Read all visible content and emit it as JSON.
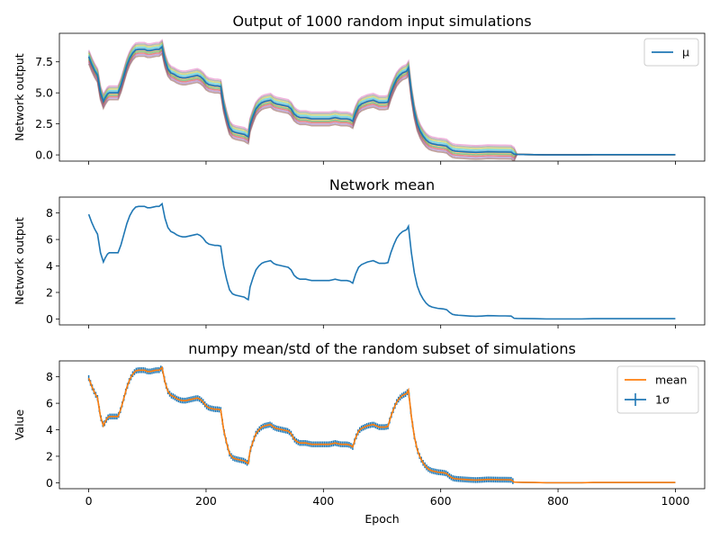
{
  "chart_data": [
    {
      "type": "line",
      "title": "Output of 1000 random input simulations",
      "xlabel": "",
      "ylabel": "Network output",
      "xlim": [
        -50,
        1050
      ],
      "ylim": [
        -0.5,
        9.8
      ],
      "xticks": [
        0,
        200,
        400,
        600,
        800,
        1000
      ],
      "yticks": [
        0.0,
        2.5,
        5.0,
        7.5
      ],
      "ytick_labels": [
        "0.0",
        "2.5",
        "5.0",
        "7.5"
      ],
      "show_xtick_labels": false,
      "legend": {
        "placement": "top-right",
        "entries": [
          {
            "label": "μ",
            "color": "#1f77b4",
            "kind": "line"
          }
        ]
      },
      "band_colors": [
        "#e377c2",
        "#7f7f7f",
        "#bcbd22",
        "#17becf",
        "#1f77b4",
        "#ff7f0e",
        "#2ca02c",
        "#d62728",
        "#9467bd",
        "#8c564b"
      ],
      "band_half_width": 0.55,
      "band_end_epoch": 725,
      "series": [
        {
          "color": "#1f77b4",
          "x": [
            0,
            5,
            10,
            15,
            20,
            25,
            28,
            32,
            35,
            40,
            45,
            50,
            55,
            60,
            65,
            70,
            75,
            80,
            85,
            90,
            95,
            100,
            105,
            110,
            115,
            120,
            125,
            130,
            135,
            140,
            145,
            150,
            155,
            160,
            165,
            170,
            175,
            180,
            185,
            190,
            195,
            200,
            205,
            210,
            215,
            220,
            225,
            230,
            235,
            240,
            245,
            250,
            255,
            260,
            265,
            270,
            272,
            275,
            280,
            285,
            290,
            295,
            300,
            305,
            310,
            315,
            320,
            325,
            330,
            335,
            340,
            345,
            350,
            355,
            360,
            365,
            370,
            375,
            380,
            385,
            390,
            395,
            400,
            405,
            410,
            415,
            420,
            425,
            430,
            435,
            440,
            445,
            450,
            455,
            460,
            465,
            470,
            475,
            480,
            485,
            490,
            495,
            500,
            505,
            510,
            515,
            520,
            525,
            530,
            535,
            540,
            542,
            545,
            550,
            555,
            560,
            565,
            570,
            575,
            580,
            585,
            590,
            595,
            600,
            605,
            610,
            615,
            620,
            625,
            630,
            640,
            650,
            660,
            670,
            680,
            690,
            700,
            710,
            720,
            725,
            730,
            740,
            760,
            780,
            800,
            820,
            840,
            860,
            880,
            900,
            920,
            940,
            960,
            980,
            1000
          ],
          "y": [
            7.9,
            7.3,
            6.8,
            6.4,
            5.0,
            4.3,
            4.6,
            4.9,
            5.0,
            5.0,
            5.0,
            5.0,
            5.6,
            6.4,
            7.2,
            7.8,
            8.2,
            8.45,
            8.5,
            8.5,
            8.5,
            8.4,
            8.4,
            8.45,
            8.5,
            8.5,
            8.7,
            7.6,
            6.9,
            6.6,
            6.5,
            6.35,
            6.25,
            6.2,
            6.2,
            6.25,
            6.3,
            6.35,
            6.4,
            6.3,
            6.1,
            5.8,
            5.65,
            5.6,
            5.55,
            5.55,
            5.5,
            4.0,
            3.0,
            2.2,
            1.9,
            1.8,
            1.75,
            1.7,
            1.65,
            1.5,
            1.45,
            2.4,
            3.1,
            3.7,
            4.0,
            4.2,
            4.3,
            4.35,
            4.4,
            4.2,
            4.1,
            4.05,
            4.0,
            3.95,
            3.9,
            3.7,
            3.3,
            3.1,
            3.0,
            3.0,
            3.0,
            2.95,
            2.9,
            2.9,
            2.9,
            2.9,
            2.9,
            2.9,
            2.9,
            2.95,
            3.0,
            2.95,
            2.9,
            2.9,
            2.9,
            2.85,
            2.7,
            3.4,
            3.9,
            4.1,
            4.2,
            4.3,
            4.35,
            4.4,
            4.3,
            4.2,
            4.2,
            4.2,
            4.25,
            5.0,
            5.6,
            6.1,
            6.4,
            6.6,
            6.7,
            6.75,
            7.0,
            5.0,
            3.5,
            2.5,
            1.9,
            1.5,
            1.2,
            1.0,
            0.9,
            0.85,
            0.8,
            0.78,
            0.75,
            0.7,
            0.5,
            0.35,
            0.3,
            0.28,
            0.25,
            0.22,
            0.2,
            0.22,
            0.25,
            0.24,
            0.23,
            0.23,
            0.22,
            0.05,
            0.04,
            0.03,
            0.02,
            0.0,
            0.0,
            0.0,
            0.0,
            0.02,
            0.02,
            0.02,
            0.02,
            0.02,
            0.02,
            0.02,
            0.02
          ]
        }
      ]
    },
    {
      "type": "line",
      "title": "Network mean",
      "xlabel": "",
      "ylabel": "Network output",
      "xlim": [
        -50,
        1050
      ],
      "ylim": [
        -0.45,
        9.2
      ],
      "xticks": [
        0,
        200,
        400,
        600,
        800,
        1000
      ],
      "yticks": [
        0,
        2,
        4,
        6,
        8
      ],
      "ytick_labels": [
        "0",
        "2",
        "4",
        "6",
        "8"
      ],
      "show_xtick_labels": false,
      "series": [
        {
          "color": "#1f77b4",
          "x": [
            0,
            5,
            10,
            15,
            20,
            25,
            28,
            32,
            35,
            40,
            45,
            50,
            55,
            60,
            65,
            70,
            75,
            80,
            85,
            90,
            95,
            100,
            105,
            110,
            115,
            120,
            125,
            130,
            135,
            140,
            145,
            150,
            155,
            160,
            165,
            170,
            175,
            180,
            185,
            190,
            195,
            200,
            205,
            210,
            215,
            220,
            225,
            230,
            235,
            240,
            245,
            250,
            255,
            260,
            265,
            270,
            272,
            275,
            280,
            285,
            290,
            295,
            300,
            305,
            310,
            315,
            320,
            325,
            330,
            335,
            340,
            345,
            350,
            355,
            360,
            365,
            370,
            375,
            380,
            385,
            390,
            395,
            400,
            405,
            410,
            415,
            420,
            425,
            430,
            435,
            440,
            445,
            450,
            455,
            460,
            465,
            470,
            475,
            480,
            485,
            490,
            495,
            500,
            505,
            510,
            515,
            520,
            525,
            530,
            535,
            540,
            542,
            545,
            550,
            555,
            560,
            565,
            570,
            575,
            580,
            585,
            590,
            595,
            600,
            605,
            610,
            615,
            620,
            625,
            630,
            640,
            650,
            660,
            670,
            680,
            690,
            700,
            710,
            720,
            725,
            730,
            740,
            760,
            780,
            800,
            820,
            840,
            860,
            880,
            900,
            920,
            940,
            960,
            980,
            1000
          ],
          "y": [
            7.9,
            7.3,
            6.8,
            6.4,
            5.0,
            4.3,
            4.6,
            4.9,
            5.0,
            5.0,
            5.0,
            5.0,
            5.6,
            6.4,
            7.2,
            7.8,
            8.2,
            8.45,
            8.5,
            8.5,
            8.5,
            8.4,
            8.4,
            8.45,
            8.5,
            8.5,
            8.7,
            7.6,
            6.9,
            6.6,
            6.5,
            6.35,
            6.25,
            6.2,
            6.2,
            6.25,
            6.3,
            6.35,
            6.4,
            6.3,
            6.1,
            5.8,
            5.65,
            5.6,
            5.55,
            5.55,
            5.5,
            4.0,
            3.0,
            2.2,
            1.9,
            1.8,
            1.75,
            1.7,
            1.65,
            1.5,
            1.45,
            2.4,
            3.1,
            3.7,
            4.0,
            4.2,
            4.3,
            4.35,
            4.4,
            4.2,
            4.1,
            4.05,
            4.0,
            3.95,
            3.9,
            3.7,
            3.3,
            3.1,
            3.0,
            3.0,
            3.0,
            2.95,
            2.9,
            2.9,
            2.9,
            2.9,
            2.9,
            2.9,
            2.9,
            2.95,
            3.0,
            2.95,
            2.9,
            2.9,
            2.9,
            2.85,
            2.7,
            3.4,
            3.9,
            4.1,
            4.2,
            4.3,
            4.35,
            4.4,
            4.3,
            4.2,
            4.2,
            4.2,
            4.25,
            5.0,
            5.6,
            6.1,
            6.4,
            6.6,
            6.7,
            6.75,
            7.0,
            5.0,
            3.5,
            2.5,
            1.9,
            1.5,
            1.2,
            1.0,
            0.9,
            0.85,
            0.8,
            0.78,
            0.75,
            0.7,
            0.5,
            0.35,
            0.3,
            0.28,
            0.25,
            0.22,
            0.2,
            0.22,
            0.25,
            0.24,
            0.23,
            0.23,
            0.22,
            0.05,
            0.04,
            0.03,
            0.02,
            0.0,
            0.0,
            0.0,
            0.0,
            0.02,
            0.02,
            0.02,
            0.02,
            0.02,
            0.02,
            0.02,
            0.02
          ]
        }
      ]
    },
    {
      "type": "line",
      "title": "numpy mean/std of the random subset of simulations",
      "xlabel": "Epoch",
      "ylabel": "Value",
      "xlim": [
        -50,
        1050
      ],
      "ylim": [
        -0.45,
        9.2
      ],
      "xticks": [
        0,
        200,
        400,
        600,
        800,
        1000
      ],
      "xtick_labels": [
        "0",
        "200",
        "400",
        "600",
        "800",
        "1000"
      ],
      "yticks": [
        0,
        2,
        4,
        6,
        8
      ],
      "ytick_labels": [
        "0",
        "2",
        "4",
        "6",
        "8"
      ],
      "show_xtick_labels": true,
      "legend": {
        "placement": "top-right",
        "entries": [
          {
            "label": "mean",
            "color": "#ff7f0e",
            "kind": "line"
          },
          {
            "label": "1σ",
            "color": "#1f77b4",
            "kind": "errorbar"
          }
        ]
      },
      "errorbar_color": "#1f77b4",
      "errorbar_half_width": 0.22,
      "errorbar_end_epoch": 725,
      "series": [
        {
          "color": "#ff7f0e",
          "x": [
            0,
            5,
            10,
            15,
            20,
            25,
            28,
            32,
            35,
            40,
            45,
            50,
            55,
            60,
            65,
            70,
            75,
            80,
            85,
            90,
            95,
            100,
            105,
            110,
            115,
            120,
            125,
            130,
            135,
            140,
            145,
            150,
            155,
            160,
            165,
            170,
            175,
            180,
            185,
            190,
            195,
            200,
            205,
            210,
            215,
            220,
            225,
            230,
            235,
            240,
            245,
            250,
            255,
            260,
            265,
            270,
            272,
            275,
            280,
            285,
            290,
            295,
            300,
            305,
            310,
            315,
            320,
            325,
            330,
            335,
            340,
            345,
            350,
            355,
            360,
            365,
            370,
            375,
            380,
            385,
            390,
            395,
            400,
            405,
            410,
            415,
            420,
            425,
            430,
            435,
            440,
            445,
            450,
            455,
            460,
            465,
            470,
            475,
            480,
            485,
            490,
            495,
            500,
            505,
            510,
            515,
            520,
            525,
            530,
            535,
            540,
            542,
            545,
            550,
            555,
            560,
            565,
            570,
            575,
            580,
            585,
            590,
            595,
            600,
            605,
            610,
            615,
            620,
            625,
            630,
            640,
            650,
            660,
            670,
            680,
            690,
            700,
            710,
            720,
            725,
            730,
            740,
            760,
            780,
            800,
            820,
            840,
            860,
            880,
            900,
            920,
            940,
            960,
            980,
            1000
          ],
          "y": [
            7.9,
            7.3,
            6.8,
            6.4,
            5.0,
            4.3,
            4.6,
            4.9,
            5.0,
            5.0,
            5.0,
            5.0,
            5.6,
            6.4,
            7.2,
            7.8,
            8.2,
            8.45,
            8.5,
            8.5,
            8.5,
            8.4,
            8.4,
            8.45,
            8.5,
            8.5,
            8.7,
            7.6,
            6.9,
            6.6,
            6.5,
            6.35,
            6.25,
            6.2,
            6.2,
            6.25,
            6.3,
            6.35,
            6.4,
            6.3,
            6.1,
            5.8,
            5.65,
            5.6,
            5.55,
            5.55,
            5.5,
            4.0,
            3.0,
            2.2,
            1.9,
            1.8,
            1.75,
            1.7,
            1.65,
            1.5,
            1.45,
            2.4,
            3.1,
            3.7,
            4.0,
            4.2,
            4.3,
            4.35,
            4.4,
            4.2,
            4.1,
            4.05,
            4.0,
            3.95,
            3.9,
            3.7,
            3.3,
            3.1,
            3.0,
            3.0,
            3.0,
            2.95,
            2.9,
            2.9,
            2.9,
            2.9,
            2.9,
            2.9,
            2.9,
            2.95,
            3.0,
            2.95,
            2.9,
            2.9,
            2.9,
            2.85,
            2.7,
            3.4,
            3.9,
            4.1,
            4.2,
            4.3,
            4.35,
            4.4,
            4.3,
            4.2,
            4.2,
            4.2,
            4.25,
            5.0,
            5.6,
            6.1,
            6.4,
            6.6,
            6.7,
            6.75,
            7.0,
            5.0,
            3.5,
            2.5,
            1.9,
            1.5,
            1.2,
            1.0,
            0.9,
            0.85,
            0.8,
            0.78,
            0.75,
            0.7,
            0.5,
            0.35,
            0.3,
            0.28,
            0.25,
            0.22,
            0.2,
            0.22,
            0.25,
            0.24,
            0.23,
            0.23,
            0.22,
            0.05,
            0.04,
            0.03,
            0.02,
            0.0,
            0.0,
            0.0,
            0.0,
            0.02,
            0.02,
            0.02,
            0.02,
            0.02,
            0.02,
            0.02,
            0.02
          ]
        }
      ]
    }
  ]
}
